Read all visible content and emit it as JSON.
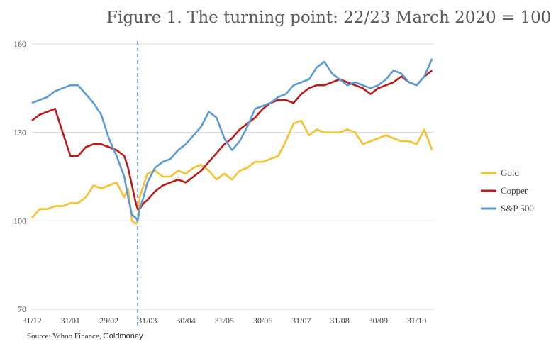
{
  "chart_data": {
    "type": "line",
    "title": "Figure 1. The turning point: 22/23 March 2020 = 100",
    "xlabel": "",
    "ylabel": "",
    "ylim": [
      70,
      160
    ],
    "yticks": [
      "70",
      "100",
      "130",
      "160"
    ],
    "xticks": [
      "31/12",
      "31/01",
      "29/02",
      "31/03",
      "30/04",
      "31/05",
      "30/06",
      "31/07",
      "31/08",
      "30/09",
      "31/10"
    ],
    "grid": "horizontal",
    "legend_position": "right",
    "marker_line": {
      "x": 2.75,
      "style": "dashed",
      "color": "#4472c4"
    },
    "x": [
      0,
      0.2,
      0.4,
      0.6,
      0.8,
      1,
      1.2,
      1.4,
      1.6,
      1.8,
      2,
      2.2,
      2.4,
      2.5,
      2.6,
      2.7,
      2.75,
      2.8,
      2.9,
      3,
      3.2,
      3.4,
      3.6,
      3.8,
      4,
      4.2,
      4.4,
      4.6,
      4.8,
      5,
      5.2,
      5.4,
      5.6,
      5.8,
      6,
      6.2,
      6.4,
      6.6,
      6.8,
      7,
      7.2,
      7.4,
      7.6,
      7.8,
      8,
      8.2,
      8.4,
      8.6,
      8.8,
      9,
      9.2,
      9.4,
      9.6,
      9.8,
      10,
      10.2,
      10.4
    ],
    "series": [
      {
        "name": "Gold",
        "color": "#f5c12e",
        "values": [
          101,
          104,
          104,
          105,
          105,
          106,
          106,
          108,
          112,
          111,
          112,
          113,
          108,
          111,
          100,
          99,
          100,
          108,
          112,
          116,
          117,
          115,
          115,
          117,
          116,
          118,
          119,
          117,
          114,
          116,
          114,
          117,
          118,
          120,
          120,
          121,
          122,
          127,
          133,
          134,
          129,
          131,
          130,
          130,
          130,
          131,
          130,
          126,
          127,
          128,
          129,
          128,
          127,
          127,
          126,
          131,
          124
        ]
      },
      {
        "name": "Copper",
        "color": "#c01919",
        "values": [
          134,
          136,
          137,
          138,
          130,
          122,
          122,
          125,
          126,
          126,
          125,
          124,
          122,
          118,
          112,
          106,
          104,
          104,
          106,
          107,
          110,
          112,
          113,
          114,
          113,
          115,
          117,
          120,
          123,
          126,
          128,
          131,
          133,
          135,
          138,
          140,
          141,
          141,
          140,
          143,
          145,
          146,
          146,
          147,
          148,
          147,
          146,
          145,
          143,
          145,
          146,
          147,
          149,
          147,
          146,
          149,
          151
        ]
      },
      {
        "name": "S&P 500",
        "color": "#5b9bd5",
        "values": [
          140,
          141,
          142,
          144,
          145,
          146,
          146,
          143,
          140,
          136,
          128,
          122,
          115,
          108,
          102,
          101,
          100,
          104,
          108,
          113,
          118,
          120,
          121,
          124,
          126,
          129,
          132,
          137,
          135,
          128,
          124,
          127,
          132,
          138,
          139,
          140,
          142,
          143,
          146,
          147,
          148,
          152,
          154,
          150,
          148,
          146,
          147,
          146,
          145,
          146,
          148,
          151,
          150,
          147,
          146,
          149,
          155
        ]
      }
    ]
  },
  "source": {
    "prefix": "Source: Yahoo Finance, ",
    "brand": "Goldmoney"
  }
}
